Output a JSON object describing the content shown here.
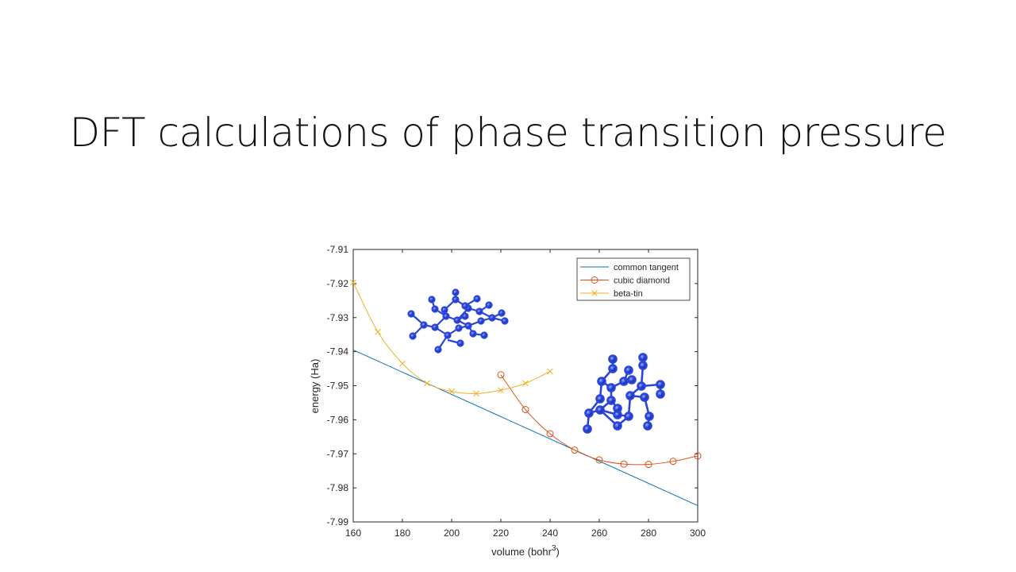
{
  "slide": {
    "title": "DFT calculations of phase transition pressure"
  },
  "chart_data": {
    "type": "line",
    "title": "",
    "xlabel": "volume (bohr",
    "xlabel_superscript": "3",
    "xlabel_suffix": ")",
    "ylabel": "energy (Ha)",
    "xlim": [
      160,
      300
    ],
    "ylim": [
      -7.99,
      -7.91
    ],
    "xticks": [
      160,
      180,
      200,
      220,
      240,
      260,
      280,
      300
    ],
    "yticks": [
      -7.91,
      -7.92,
      -7.93,
      -7.94,
      -7.95,
      -7.96,
      -7.97,
      -7.98,
      -7.99
    ],
    "legend_position": "top-right",
    "series": [
      {
        "name": "common tangent",
        "color": "#0072BD",
        "marker": "none",
        "x": [
          160,
          300
        ],
        "y": [
          -7.9395,
          -7.9852
        ]
      },
      {
        "name": "cubic diamond",
        "color": "#D95319",
        "marker": "circle",
        "x": [
          220,
          230,
          240,
          250,
          260,
          270,
          280,
          290,
          300
        ],
        "y": [
          -7.9468,
          -7.957,
          -7.9641,
          -7.9689,
          -7.9718,
          -7.973,
          -7.9731,
          -7.9722,
          -7.9706
        ]
      },
      {
        "name": "beta-tin",
        "color": "#EDB120",
        "marker": "x",
        "x": [
          160,
          170,
          180,
          190,
          200,
          210,
          220,
          230,
          240
        ],
        "y": [
          -7.9197,
          -7.9342,
          -7.9435,
          -7.9493,
          -7.9517,
          -7.9523,
          -7.9513,
          -7.9493,
          -7.9458
        ]
      }
    ]
  }
}
